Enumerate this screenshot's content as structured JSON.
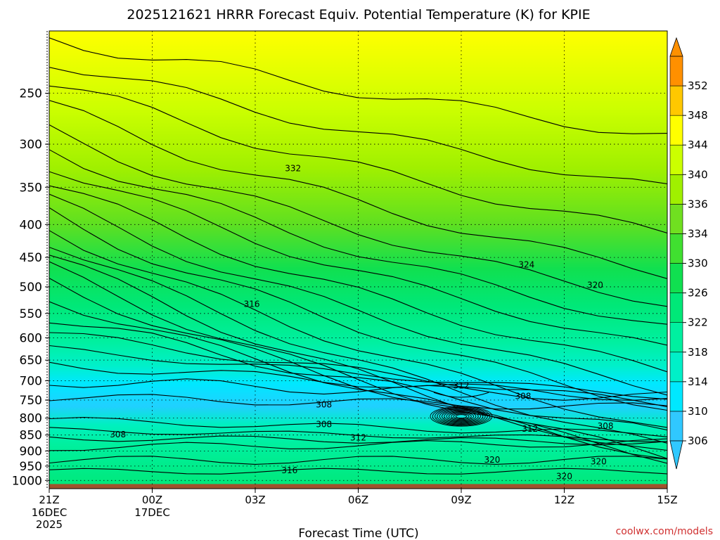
{
  "chart_data": {
    "type": "heatmap",
    "title": "2025121621 HRRR Forecast Equiv. Potential Temperature (K) for KPIE",
    "xlabel": "Forecast Time (UTC)",
    "x_ticks": [
      {
        "label": "21Z",
        "sub": [
          "16DEC",
          "2025"
        ],
        "hour": 0
      },
      {
        "label": "00Z",
        "sub": [
          "17DEC"
        ],
        "hour": 3
      },
      {
        "label": "03Z",
        "sub": [],
        "hour": 6
      },
      {
        "label": "06Z",
        "sub": [],
        "hour": 9
      },
      {
        "label": "09Z",
        "sub": [],
        "hour": 12
      },
      {
        "label": "12Z",
        "sub": [],
        "hour": 15
      },
      {
        "label": "15Z",
        "sub": [],
        "hour": 18
      }
    ],
    "xlim": [
      0,
      18
    ],
    "y_scale": "log",
    "ylim": [
      1030,
      200
    ],
    "y_ticks": [
      250,
      300,
      350,
      400,
      450,
      500,
      550,
      600,
      650,
      700,
      750,
      800,
      850,
      900,
      950,
      1000
    ],
    "grid": true,
    "colorbar": {
      "levels": [
        302,
        306,
        310,
        314,
        318,
        322,
        326,
        330,
        334,
        336,
        340,
        344,
        348,
        352,
        356
      ],
      "labels": [
        306,
        310,
        314,
        318,
        322,
        326,
        330,
        334,
        336,
        340,
        344,
        348,
        352
      ],
      "colors": [
        "#30c8ff",
        "#00e8ff",
        "#00f0c8",
        "#00f0a0",
        "#00e878",
        "#10e050",
        "#40e030",
        "#70e020",
        "#a0f000",
        "#ccff00",
        "#ffff00",
        "#ffc800",
        "#ff9000"
      ]
    },
    "surface_color": "#a0522d",
    "contour_labels": [
      {
        "text": "332",
        "hour": 7.1,
        "p": 327
      },
      {
        "text": "324",
        "hour": 13.9,
        "p": 462
      },
      {
        "text": "320",
        "hour": 15.9,
        "p": 497
      },
      {
        "text": "316",
        "hour": 5.9,
        "p": 532
      },
      {
        "text": "312",
        "hour": 12.0,
        "p": 712
      },
      {
        "text": "308",
        "hour": 8.0,
        "p": 762
      },
      {
        "text": "308",
        "hour": 13.8,
        "p": 740
      },
      {
        "text": "308",
        "hour": 8.0,
        "p": 818
      },
      {
        "text": "312",
        "hour": 14.0,
        "p": 832
      },
      {
        "text": "308",
        "hour": 16.2,
        "p": 823
      },
      {
        "text": "308",
        "hour": 2.0,
        "p": 848
      },
      {
        "text": "312",
        "hour": 9.0,
        "p": 858
      },
      {
        "text": "320",
        "hour": 12.9,
        "p": 929
      },
      {
        "text": "320",
        "hour": 16.0,
        "p": 935
      },
      {
        "text": "316",
        "hour": 7.0,
        "p": 965
      },
      {
        "text": "320",
        "hour": 15.0,
        "p": 985
      }
    ]
  },
  "credit": "coolwx.com/models"
}
